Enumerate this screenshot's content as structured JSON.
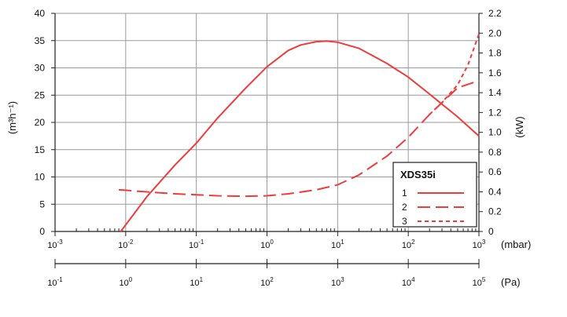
{
  "chart_data": {
    "type": "line",
    "x_scale": "log",
    "x_top": {
      "unit_label": "(mbar)",
      "range": [
        0.001,
        1000
      ],
      "ticks": [
        {
          "base": "10",
          "exp": "-3"
        },
        {
          "base": "10",
          "exp": "-2"
        },
        {
          "base": "10",
          "exp": "-1"
        },
        {
          "base": "10",
          "exp": "0"
        },
        {
          "base": "10",
          "exp": "1"
        },
        {
          "base": "10",
          "exp": "2"
        },
        {
          "base": "10",
          "exp": "3"
        }
      ]
    },
    "x_bottom": {
      "unit_label": "(Pa)",
      "ticks": [
        {
          "base": "10",
          "exp": "-1"
        },
        {
          "base": "10",
          "exp": "0"
        },
        {
          "base": "10",
          "exp": "1"
        },
        {
          "base": "10",
          "exp": "2"
        },
        {
          "base": "10",
          "exp": "3"
        },
        {
          "base": "10",
          "exp": "4"
        },
        {
          "base": "10",
          "exp": "5"
        }
      ]
    },
    "y_left": {
      "label": "(m³h⁻¹)",
      "range": [
        0,
        40
      ],
      "ticks": [
        "0",
        "5",
        "10",
        "15",
        "20",
        "25",
        "30",
        "35",
        "40"
      ]
    },
    "y_right": {
      "label": "(kW)",
      "range": [
        0,
        2.2
      ],
      "ticks": [
        "0",
        "0.2",
        "0.4",
        "0.6",
        "0.8",
        "1.0",
        "1.2",
        "1.4",
        "1.6",
        "1.8",
        "2.0",
        "2.2"
      ]
    },
    "grid": true,
    "legend": {
      "title": "XDS35i",
      "position": "bottom-right",
      "entries": [
        {
          "label": "1",
          "style": "solid"
        },
        {
          "label": "2",
          "style": "long-dash"
        },
        {
          "label": "3",
          "style": "short-dash"
        }
      ]
    },
    "series": [
      {
        "name": "1",
        "axis": "left",
        "style": "solid",
        "color": "#ee3b3b",
        "x": [
          0.0085,
          0.01,
          0.02,
          0.05,
          0.1,
          0.2,
          0.5,
          1,
          2,
          3,
          5,
          7,
          10,
          20,
          50,
          100,
          200,
          500,
          1000
        ],
        "y": [
          0,
          1.2,
          6.4,
          12.2,
          16.2,
          20.8,
          26.3,
          30.2,
          33.2,
          34.2,
          34.8,
          34.9,
          34.7,
          33.6,
          30.8,
          28.3,
          25.2,
          21.0,
          17.5
        ]
      },
      {
        "name": "2",
        "axis": "right",
        "style": "long-dash",
        "color": "#ee3b3b",
        "x": [
          0.008,
          0.02,
          0.05,
          0.1,
          0.2,
          0.5,
          1,
          2,
          5,
          10,
          20,
          50,
          100,
          200,
          500,
          1000
        ],
        "y": [
          0.42,
          0.4,
          0.38,
          0.37,
          0.36,
          0.355,
          0.36,
          0.38,
          0.42,
          0.47,
          0.57,
          0.76,
          0.95,
          1.18,
          1.45,
          1.52
        ]
      },
      {
        "name": "3",
        "axis": "right",
        "style": "short-dash",
        "color": "#ee3b3b",
        "x": [
          200,
          300,
          500,
          700,
          1000
        ],
        "y": [
          1.18,
          1.3,
          1.48,
          1.68,
          1.99
        ]
      }
    ]
  }
}
